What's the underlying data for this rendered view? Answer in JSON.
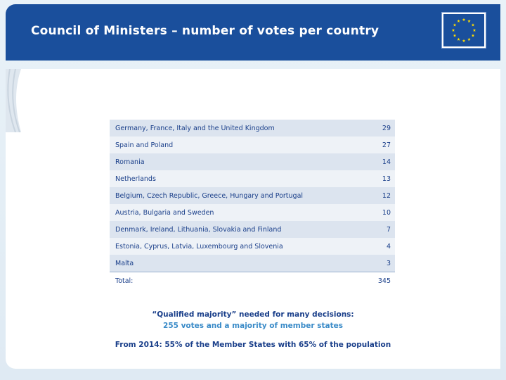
{
  "slide": {
    "title": "Council of Ministers – number of votes per country"
  },
  "table": {
    "rows": [
      {
        "label": "Germany, France, Italy and the United Kingdom",
        "votes": "29"
      },
      {
        "label": "Spain and Poland",
        "votes": "27"
      },
      {
        "label": "Romania",
        "votes": "14"
      },
      {
        "label": "Netherlands",
        "votes": "13"
      },
      {
        "label": "Belgium, Czech Republic, Greece, Hungary and Portugal",
        "votes": "12"
      },
      {
        "label": "Austria, Bulgaria and Sweden",
        "votes": "10"
      },
      {
        "label": "Denmark, Ireland, Lithuania, Slovakia and Finland",
        "votes": "7"
      },
      {
        "label": "Estonia, Cyprus, Latvia, Luxembourg and Slovenia",
        "votes": "4"
      },
      {
        "label": "Malta",
        "votes": "3"
      }
    ],
    "total_label": "Total:",
    "total_value": "345"
  },
  "notes": {
    "qualified_majority": "“Qualified majority” needed for many decisions:",
    "votes_requirement": "255 votes and a majority of member states",
    "from_2014": "From 2014: 55% of the Member States with 65% of the population"
  },
  "colors": {
    "header_blue": "#1a4f9c",
    "text_blue": "#1a3f8a",
    "accent_blue": "#3a8bc8",
    "flag_star": "#ffdd00"
  }
}
